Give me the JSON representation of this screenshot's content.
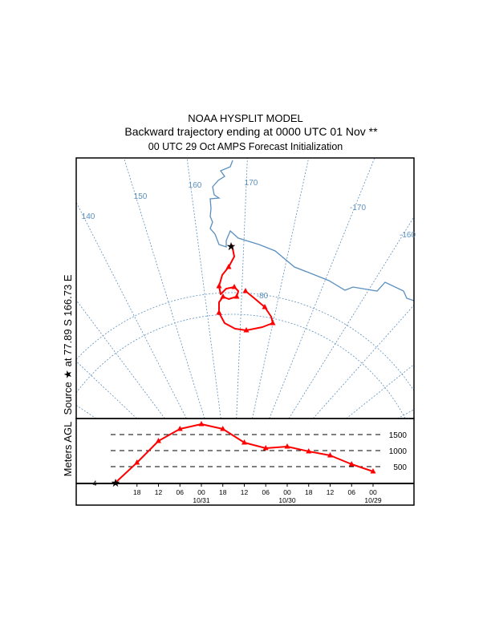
{
  "header": {
    "line1": "NOAA HYSPLIT MODEL",
    "line2": "Backward trajectory ending at 0000 UTC 01 Nov **",
    "line3": "00 UTC 29 Oct    AMPS  Forecast Initialization"
  },
  "source_label": {
    "prefix": "Source",
    "suffix": "at   77.89 S  166.73 E"
  },
  "colors": {
    "trajectory": "#ff0000",
    "map": "#5b8fbf",
    "frame": "#000000"
  },
  "chart_data": [
    {
      "type": "map-trajectory",
      "meridian_labels": [
        "140",
        "150",
        "160",
        "170",
        "-170",
        "-160"
      ],
      "latitude_labels": [
        "-80"
      ],
      "source": {
        "lat": -77.89,
        "lon": 166.73,
        "icon": "star-icon"
      }
    },
    {
      "type": "line",
      "ylabel": "Meters AGL",
      "y_ticks": [
        "500",
        "1000",
        "1500"
      ],
      "start_label": "4",
      "x_tick_labels": [
        "18",
        "12",
        "06",
        "00",
        "18",
        "12",
        "06",
        "00",
        "18",
        "12",
        "06",
        "00"
      ],
      "date_labels": [
        {
          "at": 3,
          "text": "10/31"
        },
        {
          "at": 7,
          "text": "10/30"
        },
        {
          "at": 11,
          "text": "10/29"
        }
      ],
      "hours_back": [
        0,
        6,
        12,
        18,
        24,
        30,
        36,
        42,
        48,
        54,
        60,
        66,
        72
      ],
      "heights": [
        4,
        625,
        1300,
        1675,
        1825,
        1675,
        1250,
        1075,
        1125,
        975,
        850,
        575,
        350
      ],
      "ylim": [
        0,
        2000
      ]
    }
  ]
}
